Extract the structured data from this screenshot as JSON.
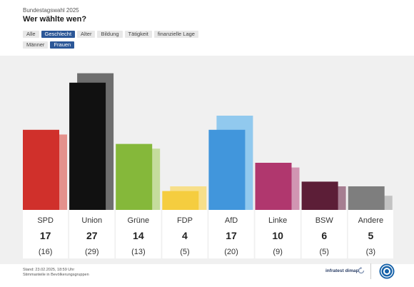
{
  "header": {
    "subtitle": "Bundestagswahl 2025",
    "title": "Wer wählte wen?"
  },
  "tabs_row1": [
    {
      "label": "Alle",
      "active": false
    },
    {
      "label": "Geschlecht",
      "active": true
    },
    {
      "label": "Alter",
      "active": false
    },
    {
      "label": "Bildung",
      "active": false
    },
    {
      "label": "Tätigkeit",
      "active": false
    },
    {
      "label": "finanzielle Lage",
      "active": false
    }
  ],
  "tabs_row2": [
    {
      "label": "Männer",
      "active": false
    },
    {
      "label": "Frauen",
      "active": true
    }
  ],
  "chart_data": {
    "type": "bar",
    "categories": [
      "SPD",
      "Union",
      "Grüne",
      "FDP",
      "AfD",
      "Linke",
      "BSW",
      "Andere"
    ],
    "series": [
      {
        "values": [
          17,
          27,
          14,
          4,
          17,
          10,
          6,
          5
        ]
      },
      {
        "values": [
          16,
          29,
          13,
          5,
          20,
          9,
          5,
          3
        ]
      }
    ],
    "value_labels": [
      "17",
      "27",
      "14",
      "4",
      "17",
      "10",
      "6",
      "5"
    ],
    "comparison_labels": [
      "(16)",
      "(29)",
      "(13)",
      "(5)",
      "(20)",
      "(9)",
      "(5)",
      "(3)"
    ],
    "colors": [
      "#d0302b",
      "#111111",
      "#85b83a",
      "#f5cd3f",
      "#4196dc",
      "#b0376e",
      "#5c1e37",
      "#7e7e7e"
    ],
    "colors_light": [
      "#e4918c",
      "#6e6e6e",
      "#c5dc9d",
      "#f7df8a",
      "#91c9ee",
      "#d195b2",
      "#a67e91",
      "#c2c2c2"
    ],
    "ylim": [
      0,
      30
    ]
  },
  "footer": {
    "line1": "Stand: 23.02.2025, 18:59 Uhr",
    "line2": "Stimmanteile in Bevölkerungsgruppen",
    "brand": "infratest dimap"
  }
}
